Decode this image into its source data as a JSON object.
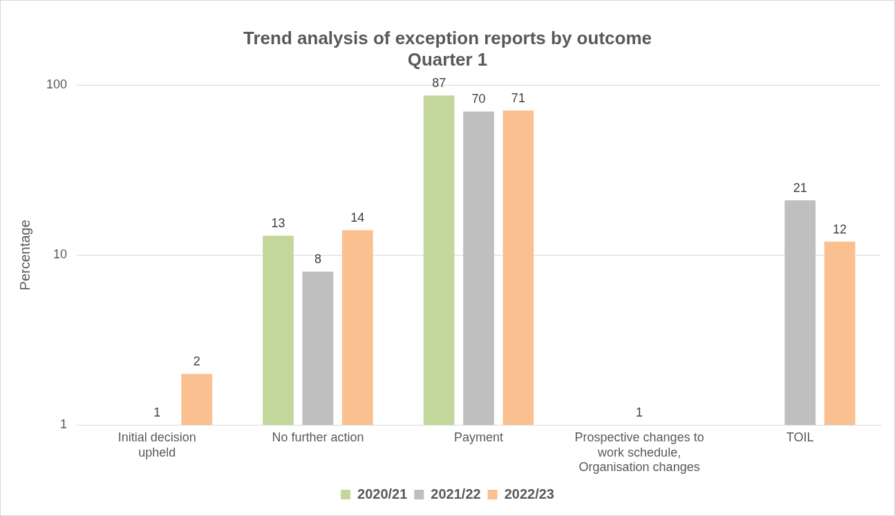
{
  "chart_data": {
    "type": "bar",
    "title": "Trend analysis of exception reports by outcome",
    "subtitle": "Quarter 1",
    "ylabel": "Percentage",
    "categories": [
      "Initial decision upheld",
      "No further action",
      "Payment",
      "Prospective changes to work schedule, Organisation changes",
      "TOIL"
    ],
    "series": [
      {
        "name": "2020/21",
        "color": "#c4d79b",
        "values": [
          null,
          13,
          87,
          null,
          null
        ]
      },
      {
        "name": "2021/22",
        "color": "#bfbfbf",
        "values": [
          1,
          8,
          70,
          1,
          21
        ]
      },
      {
        "name": "2022/23",
        "color": "#fac090",
        "values": [
          2,
          14,
          71,
          null,
          12
        ]
      }
    ],
    "log": true,
    "ylim": [
      1,
      100
    ],
    "yticks": [
      1,
      10,
      100
    ],
    "grid": "y",
    "legend": "bottom",
    "data_labels": true
  }
}
